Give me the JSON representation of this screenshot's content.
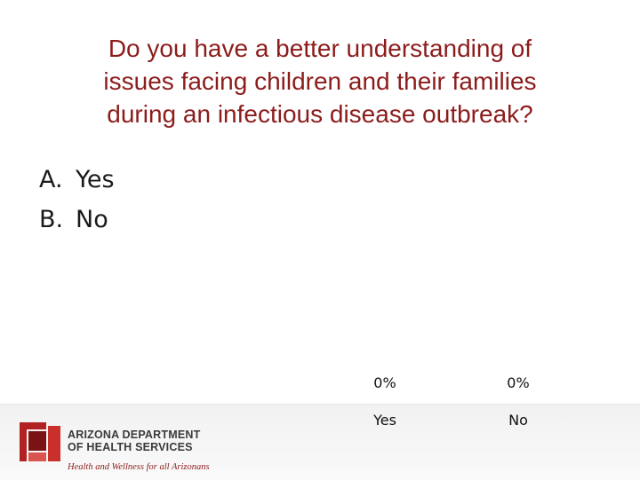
{
  "question": {
    "line1": "Do you have a better understanding of",
    "line2": "issues facing children and their families",
    "line3": "during an infectious disease outbreak?"
  },
  "options": [
    {
      "letter": "A.",
      "text": "Yes"
    },
    {
      "letter": "B.",
      "text": "No"
    }
  ],
  "chart_data": {
    "type": "bar",
    "categories": [
      "Yes",
      "No"
    ],
    "values": [
      0,
      0
    ],
    "data_labels": [
      "0%",
      "0%"
    ],
    "unit": "%"
  },
  "logo": {
    "line1": "ARIZONA DEPARTMENT",
    "line2": "OF HEALTH SERVICES",
    "tagline": "Health and Wellness for all Arizonans"
  },
  "colors": {
    "title": "#8c1c1c",
    "brand_red": "#b22222",
    "brand_dark": "#7a1414"
  }
}
